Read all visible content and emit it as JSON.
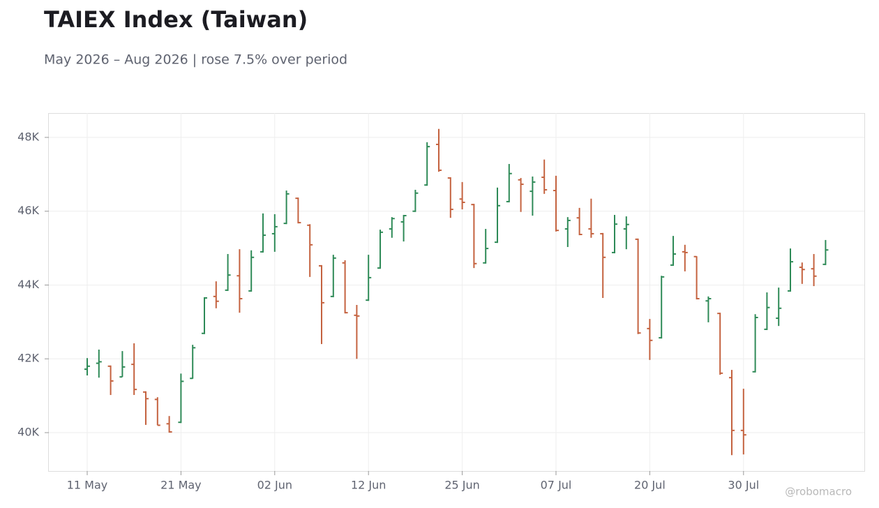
{
  "chart_data": {
    "type": "ohlc",
    "title": "TAIEX Index (Taiwan)",
    "subtitle": "May 2026 – Aug 2026 | rose 7.5% over period",
    "watermark": "@robomacro",
    "categories": [
      "11 May",
      null,
      null,
      null,
      null,
      null,
      null,
      null,
      "21 May",
      null,
      null,
      null,
      null,
      null,
      null,
      null,
      "02 Jun",
      null,
      null,
      null,
      null,
      null,
      null,
      null,
      "12 Jun",
      null,
      null,
      null,
      null,
      null,
      null,
      null,
      "25 Jun",
      null,
      null,
      null,
      null,
      null,
      null,
      null,
      "07 Jul",
      null,
      null,
      null,
      null,
      null,
      null,
      null,
      "20 Jul",
      null,
      null,
      null,
      null,
      null,
      null,
      null,
      "30 Jul",
      null,
      null,
      null,
      null,
      null,
      null,
      null
    ],
    "open": [
      41720,
      41880,
      41800,
      41510,
      41850,
      41100,
      40900,
      40240,
      40280,
      41470,
      42690,
      43690,
      43860,
      44250,
      43840,
      44900,
      45390,
      45670,
      46350,
      45620,
      44520,
      43690,
      44600,
      43180,
      43590,
      44460,
      45520,
      45710,
      46000,
      46710,
      47810,
      46900,
      46330,
      46180,
      44600,
      45160,
      46260,
      46850,
      46540,
      46920,
      46560,
      45520,
      45820,
      45520,
      45390,
      44880,
      45520,
      45240,
      42820,
      42570,
      44540,
      44900,
      44770,
      43570,
      43230,
      41490,
      40060,
      41650,
      42800,
      43100,
      43840,
      44480,
      44440,
      44560
    ],
    "high": [
      42020,
      42250,
      41820,
      42210,
      42420,
      41120,
      40960,
      40450,
      41600,
      42380,
      43670,
      44100,
      44840,
      44970,
      44940,
      45940,
      45920,
      46560,
      46370,
      45650,
      44540,
      44820,
      44670,
      43460,
      44820,
      45500,
      45840,
      45900,
      46580,
      47870,
      48230,
      46920,
      46790,
      46200,
      45520,
      46640,
      47280,
      46900,
      46940,
      47400,
      46960,
      45840,
      46090,
      46340,
      45410,
      45900,
      45860,
      45260,
      43080,
      44250,
      45330,
      45090,
      44780,
      43690,
      43250,
      41700,
      41190,
      43210,
      43800,
      43930,
      44990,
      44610,
      44840,
      45220
    ],
    "low": [
      41550,
      41490,
      41020,
      41510,
      41020,
      40210,
      40200,
      40000,
      40260,
      41460,
      42670,
      43370,
      43840,
      43250,
      43820,
      44880,
      44900,
      45650,
      45670,
      44220,
      42400,
      43670,
      43230,
      42000,
      43570,
      44440,
      45280,
      45180,
      45980,
      46690,
      47070,
      45820,
      46050,
      44460,
      44580,
      45140,
      46240,
      45980,
      45880,
      46470,
      45450,
      45030,
      45350,
      45280,
      43650,
      44860,
      44970,
      42670,
      41970,
      42550,
      44520,
      44370,
      43610,
      42990,
      41570,
      39390,
      39410,
      41630,
      42780,
      42890,
      43820,
      44030,
      43970,
      44540
    ],
    "close": [
      41800,
      41920,
      41400,
      41780,
      41170,
      40920,
      40200,
      40020,
      41390,
      42300,
      43650,
      43560,
      44270,
      43630,
      44750,
      45350,
      45580,
      46470,
      45690,
      45090,
      43520,
      44730,
      43250,
      43160,
      44200,
      45430,
      45800,
      45880,
      46490,
      47750,
      47110,
      46050,
      46240,
      44580,
      44990,
      46150,
      47020,
      46730,
      46790,
      46580,
      45480,
      45750,
      45370,
      45390,
      44750,
      45650,
      45640,
      42700,
      42500,
      44220,
      44840,
      44880,
      43630,
      43630,
      41610,
      40060,
      39940,
      43120,
      43390,
      43370,
      44630,
      44420,
      44240,
      44950
    ],
    "up_color": "#2e8a57",
    "down_color": "#c4623f",
    "ylim": [
      38960,
      48660
    ],
    "yticks": [
      {
        "value": 40000,
        "label": "40K"
      },
      {
        "value": 42000,
        "label": "42K"
      },
      {
        "value": 44000,
        "label": "44K"
      },
      {
        "value": 46000,
        "label": "46K"
      },
      {
        "value": 48000,
        "label": "48K"
      }
    ],
    "grid": true
  }
}
